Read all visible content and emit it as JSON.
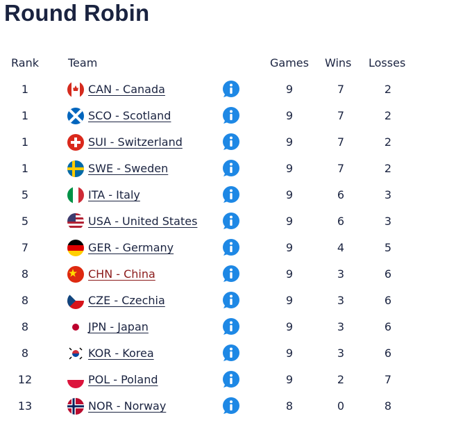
{
  "title": "Round Robin",
  "table": {
    "header": [
      "Rank",
      "Team",
      "Games",
      "Wins",
      "Losses"
    ],
    "rows": [
      [
        1,
        "CAN - Canada",
        9,
        7,
        2
      ],
      [
        1,
        "SCO - Scotland",
        9,
        7,
        2
      ],
      [
        1,
        "SUI - Switzerland",
        9,
        7,
        2
      ],
      [
        1,
        "SWE - Sweden",
        9,
        7,
        2
      ],
      [
        5,
        "ITA - Italy",
        9,
        6,
        3
      ],
      [
        5,
        "USA - United States",
        9,
        6,
        3
      ],
      [
        7,
        "GER - Germany",
        9,
        4,
        5
      ],
      [
        8,
        "CHN - China",
        9,
        3,
        6
      ],
      [
        8,
        "CZE - Czechia",
        9,
        3,
        6
      ],
      [
        8,
        "JPN - Japan",
        9,
        3,
        6
      ],
      [
        8,
        "KOR - Korea",
        9,
        3,
        6
      ],
      [
        12,
        "POL - Poland",
        9,
        2,
        7
      ],
      [
        13,
        "NOR - Norway",
        8,
        0,
        8
      ]
    ]
  }
}
